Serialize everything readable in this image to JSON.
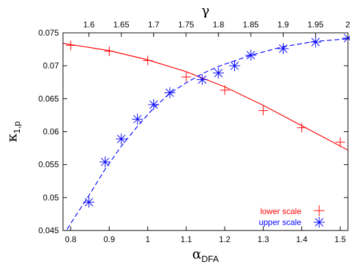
{
  "chart_data": {
    "type": "scatter",
    "xlabel_main": "α",
    "xlabel_sub": "DFA",
    "x2label": "γ",
    "ylabel_main": "κ",
    "ylabel_sub": "1,p",
    "xlim": [
      0.78,
      1.52
    ],
    "x2lim": [
      1.56,
      2.0
    ],
    "ylim": [
      0.045,
      0.075
    ],
    "x_ticks": [
      0.8,
      0.9,
      1.0,
      1.1,
      1.2,
      1.3,
      1.4,
      1.5
    ],
    "x_tick_labels": [
      "0.8",
      "0.9",
      "1",
      "1.1",
      "1.2",
      "1.3",
      "1.4",
      "1.5"
    ],
    "x2_ticks": [
      1.6,
      1.65,
      1.7,
      1.75,
      1.8,
      1.85,
      1.9,
      1.95,
      2.0
    ],
    "x2_tick_labels": [
      "1.6",
      "1.65",
      "1.7",
      "1.75",
      "1.8",
      "1.85",
      "1.9",
      "1.95",
      "2"
    ],
    "y_ticks": [
      0.045,
      0.05,
      0.055,
      0.06,
      0.065,
      0.07,
      0.075
    ],
    "y_tick_labels": [
      "0.045",
      "0.05",
      "0.055",
      "0.06",
      "0.065",
      "0.07",
      "0.075"
    ],
    "legend_position": "bottom-right",
    "series": [
      {
        "name": "lower scale",
        "axis": "bottom",
        "color": "#ff0000",
        "marker": "plus",
        "line_style": "solid",
        "points": [
          [
            0.8,
            0.0731
          ],
          [
            0.9,
            0.0722
          ],
          [
            1.0,
            0.0708
          ],
          [
            1.1,
            0.0683
          ],
          [
            1.2,
            0.0663
          ],
          [
            1.3,
            0.0632
          ],
          [
            1.4,
            0.0606
          ],
          [
            1.5,
            0.0584
          ]
        ],
        "fit": [
          [
            0.78,
            0.0734
          ],
          [
            0.9,
            0.0723
          ],
          [
            1.0,
            0.0709
          ],
          [
            1.1,
            0.0691
          ],
          [
            1.2,
            0.0668
          ],
          [
            1.3,
            0.064
          ],
          [
            1.4,
            0.0609
          ],
          [
            1.52,
            0.0572
          ]
        ]
      },
      {
        "name": "upper scale",
        "axis": "top",
        "color": "#0000ff",
        "marker": "asterisk",
        "line_style": "dashed",
        "points": [
          [
            1.6,
            0.0493
          ],
          [
            1.625,
            0.0554
          ],
          [
            1.65,
            0.0589
          ],
          [
            1.675,
            0.0619
          ],
          [
            1.7,
            0.0641
          ],
          [
            1.725,
            0.0659
          ],
          [
            1.775,
            0.0679
          ],
          [
            1.8,
            0.0689
          ],
          [
            1.825,
            0.07
          ],
          [
            1.85,
            0.0716
          ],
          [
            1.9,
            0.0726
          ],
          [
            1.95,
            0.0736
          ],
          [
            2.0,
            0.0742
          ]
        ],
        "fit": [
          [
            1.56,
            0.0442
          ],
          [
            1.58,
            0.0473
          ],
          [
            1.6,
            0.0503
          ],
          [
            1.625,
            0.0543
          ],
          [
            1.65,
            0.0578
          ],
          [
            1.675,
            0.0608
          ],
          [
            1.7,
            0.0636
          ],
          [
            1.725,
            0.0658
          ],
          [
            1.75,
            0.0674
          ],
          [
            1.775,
            0.0688
          ],
          [
            1.8,
            0.0699
          ],
          [
            1.85,
            0.0716
          ],
          [
            1.9,
            0.0729
          ],
          [
            1.95,
            0.0737
          ],
          [
            2.0,
            0.0741
          ]
        ]
      }
    ]
  }
}
